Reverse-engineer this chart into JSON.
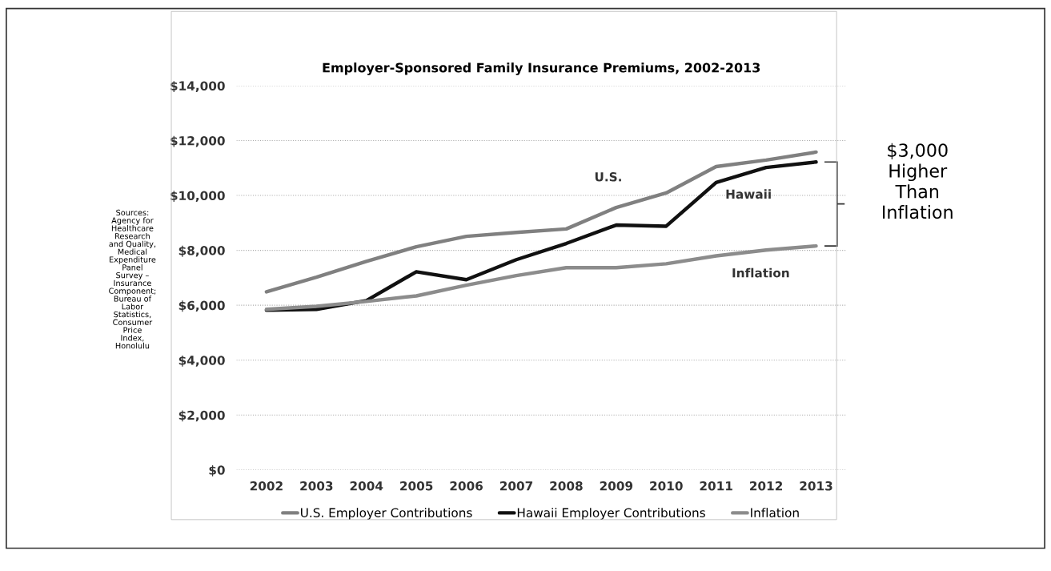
{
  "chart_data": {
    "type": "line",
    "title": "Employer-Sponsored Family Insurance Premiums, 2002-2013",
    "categories": [
      "2002",
      "2003",
      "2004",
      "2005",
      "2006",
      "2007",
      "2008",
      "2009",
      "2010",
      "2011",
      "2012",
      "2013"
    ],
    "series": [
      {
        "name": "U.S. Employer Contributions",
        "color": "#808080",
        "values": [
          6490,
          7020,
          7600,
          8130,
          8510,
          8650,
          8780,
          9560,
          10090,
          11050,
          11290,
          11580
        ]
      },
      {
        "name": "Hawaii Employer Contributions",
        "color": "#111111",
        "values": [
          5820,
          5850,
          6170,
          7220,
          6930,
          7660,
          8250,
          8920,
          8880,
          10470,
          11020,
          11220
        ]
      },
      {
        "name": "Inflation",
        "color": "#8c8c8c",
        "values": [
          5850,
          5960,
          6140,
          6340,
          6730,
          7080,
          7370,
          7370,
          7510,
          7800,
          8010,
          8160
        ]
      }
    ],
    "ylim": [
      0,
      14000
    ],
    "yticks": [
      {
        "value": 0,
        "label": "$0"
      },
      {
        "value": 2000,
        "label": "$2,000"
      },
      {
        "value": 4000,
        "label": "$4,000"
      },
      {
        "value": 6000,
        "label": "$6,000"
      },
      {
        "value": 8000,
        "label": "$8,000"
      },
      {
        "value": 10000,
        "label": "$10,000"
      },
      {
        "value": 12000,
        "label": "$12,000"
      },
      {
        "value": 14000,
        "label": "$14,000"
      }
    ],
    "grid": "y",
    "legend": "bottom",
    "marker": "none",
    "line_style": "solid",
    "annotations": [
      "U.S.",
      "Hawaii",
      "Inflation",
      "$3,000\nHigher\nThan\nInflation",
      "Sources:\nAgency for\nHealthcare\nResearch\nand Quality,\nMedical\nExpenditure\nPanel\nSurvey –\nInsurance\nComponent;\nBureau of\nLabor\nStatistics,\nConsumer\nPrice\nIndex,\nHonolulu"
    ]
  }
}
